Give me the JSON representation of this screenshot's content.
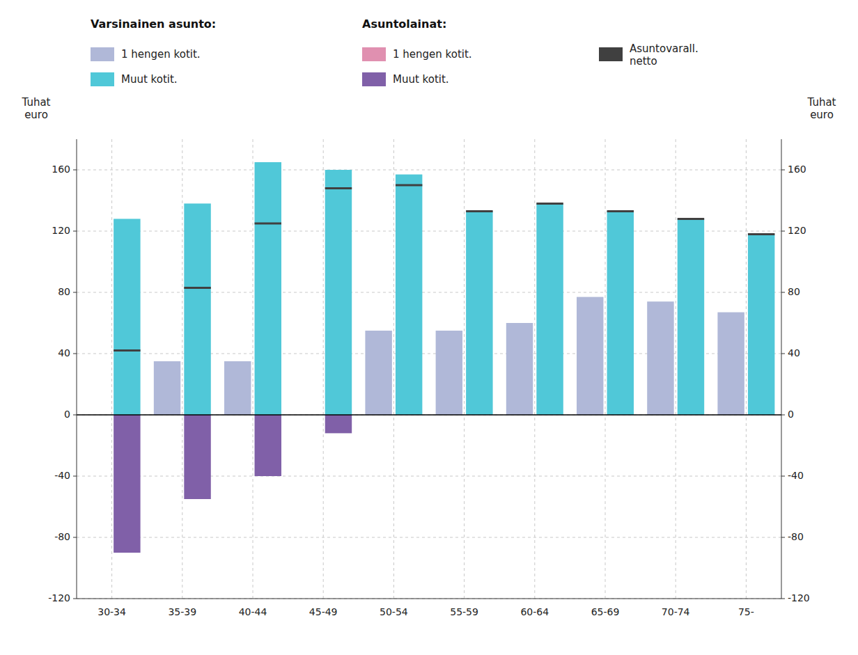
{
  "chart_data": {
    "type": "bar",
    "categories": [
      "30-34",
      "35-39",
      "40-44",
      "45-49",
      "50-54",
      "55-59",
      "60-64",
      "65-69",
      "70-74",
      "75-"
    ],
    "series": [
      {
        "name": "1 hengen kotit.",
        "type": "bar",
        "color": "#b0b8d8",
        "values": [
          0,
          35,
          35,
          0,
          55,
          55,
          60,
          77,
          74,
          67
        ]
      },
      {
        "name": "Muut kotit.",
        "type": "bar",
        "color": "#50c8d8",
        "values": [
          128,
          138,
          165,
          160,
          157,
          133,
          138,
          133,
          128,
          118
        ]
      },
      {
        "name": "1 hengen kotit.",
        "type": "bar",
        "color": "#e090b0",
        "values": [
          null,
          null,
          null,
          null,
          null,
          null,
          null,
          null,
          null,
          null
        ]
      },
      {
        "name": "Muut kotit.",
        "type": "bar",
        "color": "#8060a8",
        "values": [
          -90,
          -55,
          -40,
          -12,
          0,
          0,
          0,
          0,
          0,
          0
        ]
      },
      {
        "name": "Asuntovarall.\nnetto",
        "type": "scatter",
        "marker": "hline",
        "color": "#404040",
        "values": [
          42,
          83,
          125,
          148,
          150,
          133,
          138,
          133,
          128,
          118
        ]
      }
    ],
    "annotations": [
      "Varsinainen asunto:",
      "Asuntolainat:"
    ],
    "ylabel": "Tuhat\neuro",
    "y2label": "Tuhat\neuro",
    "ylim": [
      -120,
      180
    ],
    "yticks": [
      -120,
      -80,
      -40,
      0,
      40,
      80,
      120,
      160
    ],
    "y2lim": [
      -120,
      180
    ],
    "y2ticks": [
      -120,
      -80,
      -40,
      0,
      40,
      80,
      120,
      160
    ],
    "grid": true
  }
}
